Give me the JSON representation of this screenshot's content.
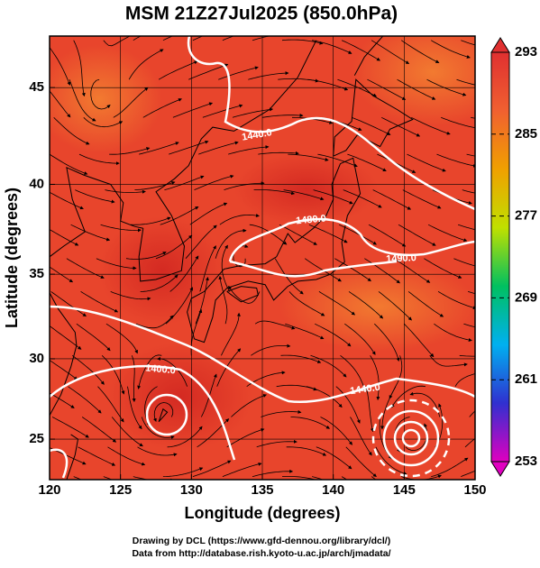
{
  "title": "MSM 21Z27Jul2025 (850.0hPa)",
  "map": {
    "xlabel": "Longitude (degrees)",
    "ylabel": "Latitude  (degrees)",
    "xlim": [
      120,
      150
    ],
    "ylim": [
      22.4,
      47.5
    ],
    "xticks": [
      120,
      125,
      130,
      135,
      140,
      145,
      150
    ],
    "yticks": [
      25,
      30,
      35,
      40,
      45
    ],
    "projection": "mercator"
  },
  "colorbar": {
    "lim": [
      253,
      293
    ],
    "ticks": [
      253,
      261,
      269,
      277,
      285,
      293
    ],
    "colors": [
      "#e000c0",
      "#3030d0",
      "#00b0f0",
      "#00c060",
      "#c0e000",
      "#f0a000",
      "#f06030",
      "#e03030"
    ]
  },
  "contour_labels": [
    "1440.0",
    "1480.0",
    "1490.0",
    "1400.0",
    "1440.0"
  ],
  "credits": [
    "Drawing by DCL (https://www.gfd-dennou.org/library/dcl/)",
    "Data from http://database.rish.kyoto-u.ac.jp/arch/jmadata/"
  ]
}
